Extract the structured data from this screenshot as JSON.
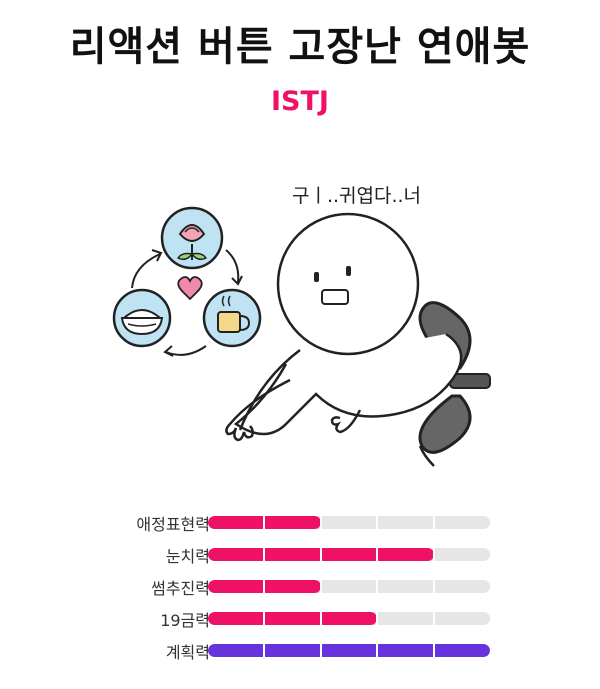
{
  "header": {
    "title": "리액션 버튼 고장난 연애봇",
    "type_code": "ISTJ"
  },
  "illustration": {
    "speech": "구ㅣ..귀엽다..너",
    "icons": [
      "rose-icon",
      "heart-icon",
      "coffee-cup-icon",
      "rice-bowl-icon",
      "wind-up-key-icon"
    ]
  },
  "stats": {
    "segments": 5,
    "items": [
      {
        "label": "애정표현력",
        "level": 2,
        "color": "#ee1166"
      },
      {
        "label": "눈치력",
        "level": 4,
        "color": "#ee1166"
      },
      {
        "label": "썸추진력",
        "level": 2,
        "color": "#ee1166"
      },
      {
        "label": "19금력",
        "level": 3,
        "color": "#ee1166"
      },
      {
        "label": "계획력",
        "level": 5,
        "color": "#6633dd"
      }
    ]
  },
  "colors": {
    "accent": "#ee1166",
    "plan": "#6633dd",
    "track": "#e6e6e6"
  }
}
